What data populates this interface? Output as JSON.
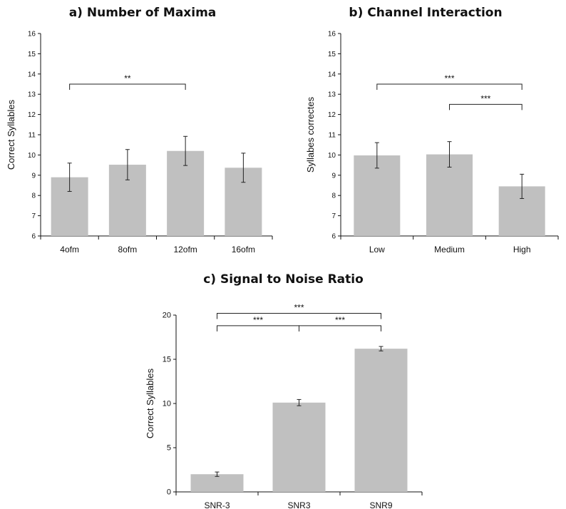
{
  "chart_data": [
    {
      "type": "bar",
      "title": "a) Number of Maxima",
      "ylabel": "Correct Syllables",
      "xlabel": "",
      "categories": [
        "4ofm",
        "8ofm",
        "12ofm",
        "16ofm"
      ],
      "values": [
        8.9,
        9.52,
        10.2,
        9.37
      ],
      "error": [
        0.7,
        0.75,
        0.72,
        0.72
      ],
      "ylim": [
        6,
        16
      ],
      "yticks": [
        "6",
        "7",
        "8",
        "9",
        "10",
        "11",
        "12",
        "13",
        "14",
        "15",
        "16"
      ],
      "significance": [
        {
          "from": 0,
          "to": 2,
          "label": "**",
          "level": 13.5
        }
      ]
    },
    {
      "type": "bar",
      "title": "b) Channel Interaction",
      "ylabel": "Syllabes correctes",
      "xlabel": "",
      "categories": [
        "Low",
        "Medium",
        "High"
      ],
      "values": [
        9.98,
        10.03,
        8.45
      ],
      "error": [
        0.63,
        0.63,
        0.6
      ],
      "ylim": [
        6,
        16
      ],
      "yticks": [
        "6",
        "7",
        "8",
        "9",
        "10",
        "11",
        "12",
        "13",
        "14",
        "15",
        "16"
      ],
      "significance": [
        {
          "from": 0,
          "to": 2,
          "label": "***",
          "level": 13.5
        },
        {
          "from": 1,
          "to": 2,
          "label": "***",
          "level": 12.5
        }
      ]
    },
    {
      "type": "bar",
      "title": "c) Signal to Noise Ratio",
      "ylabel": "Correct Syllables",
      "xlabel": "",
      "categories": [
        "SNR-3",
        "SNR3",
        "SNR9"
      ],
      "values": [
        2.0,
        10.1,
        16.2
      ],
      "error": [
        0.25,
        0.35,
        0.25
      ],
      "ylim": [
        0,
        20
      ],
      "yticks": [
        "0",
        "5",
        "10",
        "15",
        "20"
      ],
      "significance": [
        {
          "from": 0,
          "to": 2,
          "label": "***",
          "level": 20.2
        },
        {
          "from": 0,
          "to": 1,
          "label": "***",
          "level": 18.8
        },
        {
          "from": 1,
          "to": 2,
          "label": "***",
          "level": 18.8
        }
      ]
    }
  ],
  "colors": {
    "bar": "#c0c0c0",
    "axis": "#111111",
    "bracket": "#222222"
  }
}
